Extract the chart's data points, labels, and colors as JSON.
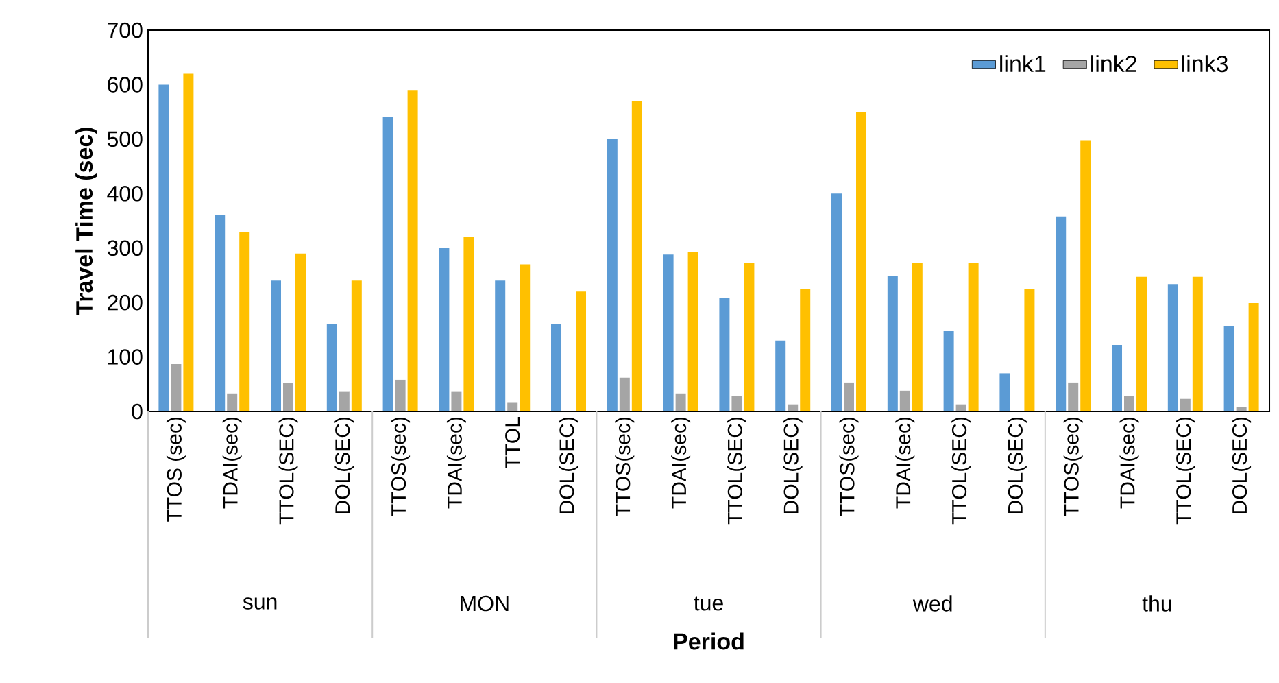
{
  "chart_data": {
    "type": "bar",
    "xlabel": "Period",
    "ylabel": "Travel Time (sec)",
    "categories": [
      "TTOS (sec)",
      "TDAI(sec)",
      "TTOL(SEC)",
      "DOL(SEC)",
      "TTOS(sec)",
      "TDAI(sec)",
      "TTOL",
      "DOL(SEC)",
      "TTOS(sec)",
      "TDAI(sec)",
      "TTOL(SEC)",
      "DOL(SEC)",
      "TTOS(sec)",
      "TDAI(sec)",
      "TTOL(SEC)",
      "DOL(SEC)",
      "TTOS(sec)",
      "TDAI(sec)",
      "TTOL(SEC)",
      "DOL(SEC)"
    ],
    "annotations": [
      "sun",
      "MON",
      "tue",
      "wed",
      "thu"
    ],
    "series": [
      {
        "name": "link1",
        "color": "#5b9bd5",
        "values": [
          600,
          360,
          240,
          160,
          540,
          300,
          240,
          160,
          500,
          288,
          208,
          130,
          400,
          248,
          148,
          70,
          358,
          122,
          234,
          156
        ]
      },
      {
        "name": "link2",
        "color": "#a5a5a5",
        "values": [
          87,
          33,
          52,
          37,
          58,
          37,
          17,
          null,
          62,
          33,
          28,
          13,
          53,
          38,
          13,
          0,
          53,
          28,
          23,
          8
        ]
      },
      {
        "name": "link3",
        "color": "#ffc000",
        "values": [
          620,
          330,
          290,
          240,
          590,
          320,
          270,
          220,
          570,
          292,
          272,
          224,
          550,
          272,
          272,
          224,
          498,
          247,
          247,
          199
        ]
      }
    ],
    "ylim": [
      0,
      700
    ],
    "yticks": [
      0,
      100,
      200,
      300,
      400,
      500,
      600,
      700
    ],
    "grid": false,
    "legend": "top right"
  }
}
